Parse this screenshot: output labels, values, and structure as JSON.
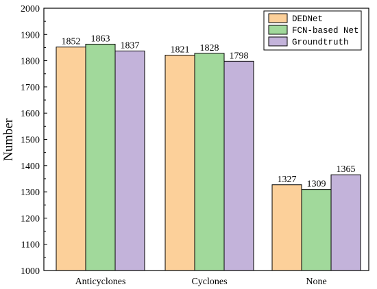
{
  "chart_data": {
    "type": "bar",
    "categories": [
      "Anticyclones",
      "Cyclones",
      "None"
    ],
    "series": [
      {
        "name": "DEDNet",
        "values": [
          1852,
          1821,
          1327
        ],
        "color": "#FCD09A"
      },
      {
        "name": "FCN-based Net",
        "values": [
          1863,
          1828,
          1309
        ],
        "color": "#A1D99B"
      },
      {
        "name": "Groundtruth",
        "values": [
          1837,
          1798,
          1365
        ],
        "color": "#C3B3DA"
      }
    ],
    "ylabel": "Number",
    "xlabel": "",
    "ylim": [
      1000,
      2000
    ],
    "yticks": [
      1000,
      1100,
      1200,
      1300,
      1400,
      1500,
      1600,
      1700,
      1800,
      1900,
      2000
    ],
    "data_labels": true,
    "legend": "top-right",
    "grid": false
  }
}
